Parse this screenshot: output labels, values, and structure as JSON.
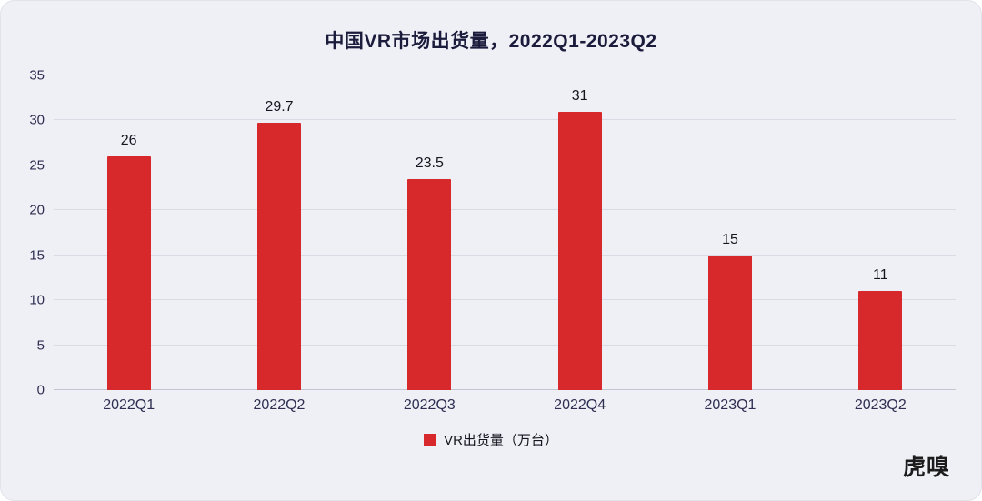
{
  "title": "中国VR市场出货量，2022Q1-2023Q2",
  "logo": "虎嗅",
  "legend": {
    "label": "VR出货量（万台）",
    "color": "#d7282c"
  },
  "colors": {
    "bar": "#d7282c",
    "background": "#eff0f5",
    "text": "#2e2e52"
  },
  "chart_data": {
    "type": "bar",
    "title": "中国VR市场出货量，2022Q1-2023Q2",
    "categories": [
      "2022Q1",
      "2022Q2",
      "2022Q3",
      "2022Q4",
      "2023Q1",
      "2023Q2"
    ],
    "values": [
      26,
      29.7,
      23.5,
      31,
      15,
      11
    ],
    "xlabel": "",
    "ylabel": "",
    "ylim": [
      0,
      35
    ],
    "yticks": [
      0,
      5,
      10,
      15,
      20,
      25,
      30,
      35
    ],
    "grid": true,
    "legend": [
      "VR出货量（万台）"
    ],
    "legend_position": "bottom",
    "bar_color": "#d7282c"
  }
}
